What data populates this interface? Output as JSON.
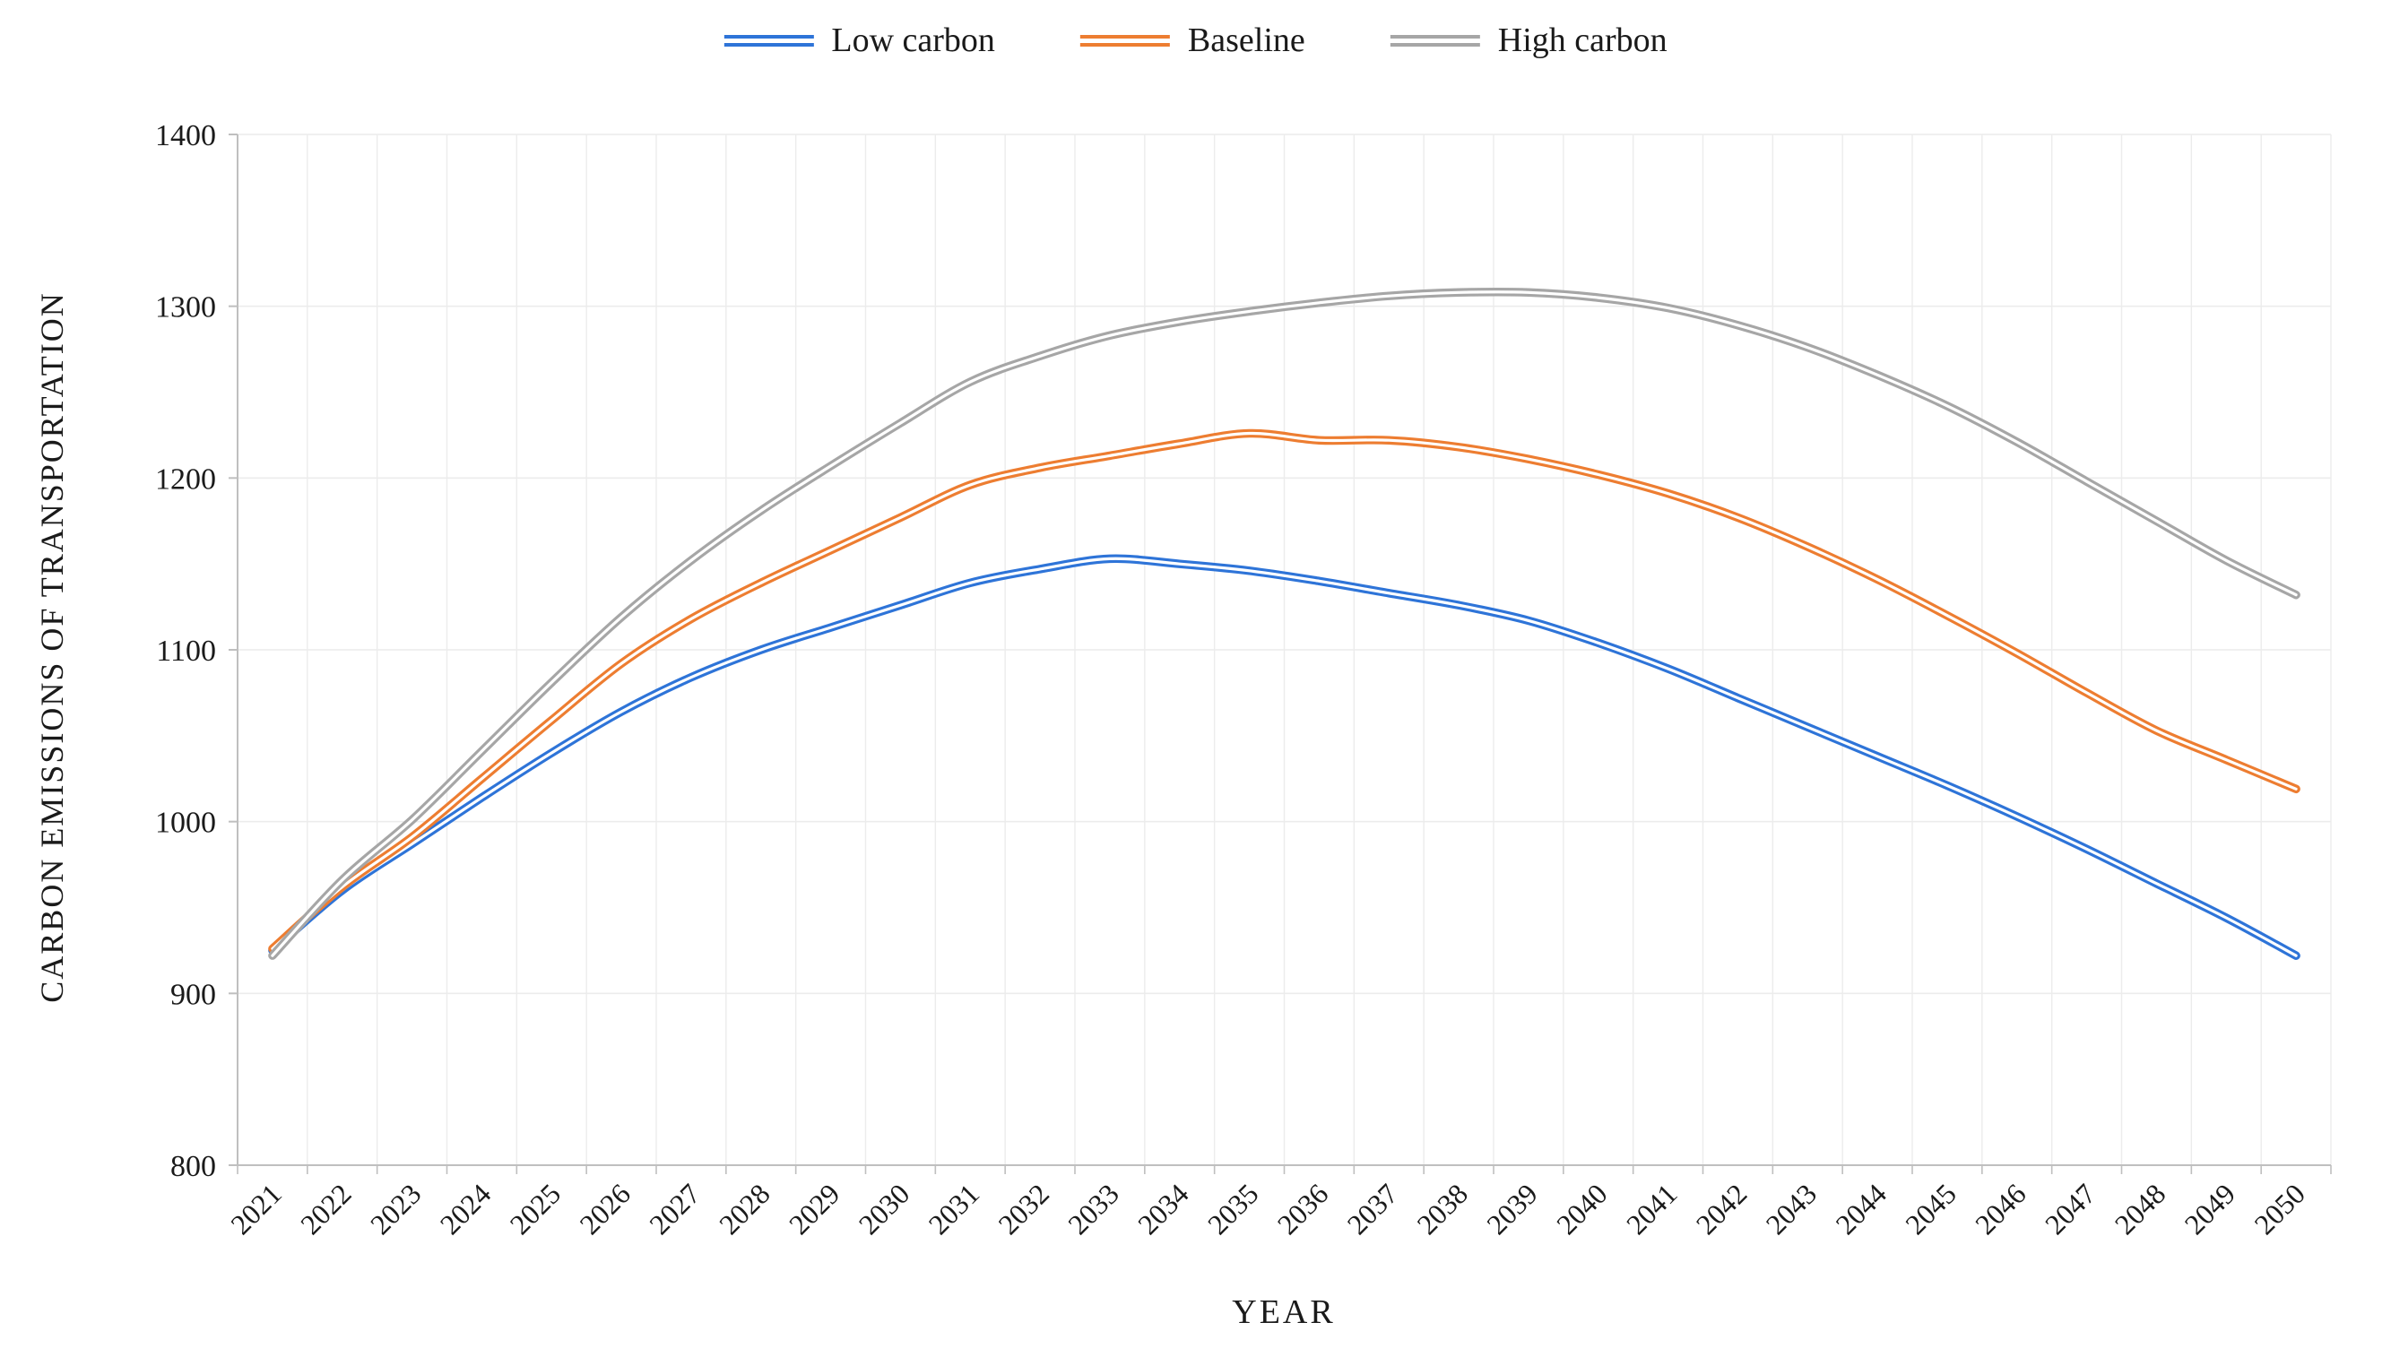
{
  "chart_data": {
    "type": "line",
    "title": "",
    "xlabel": "YEAR",
    "ylabel": "CARBON EMISSIONS OF TRANSPORTATION",
    "ylim": [
      800,
      1400
    ],
    "ytick_interval": 100,
    "grid": true,
    "legend_position": "top",
    "line_style": "double-stroke-smooth",
    "categories": [
      "2021",
      "2022",
      "2023",
      "2024",
      "2025",
      "2026",
      "2027",
      "2028",
      "2029",
      "2030",
      "2031",
      "2032",
      "2033",
      "2034",
      "2035",
      "2036",
      "2037",
      "2038",
      "2039",
      "2040",
      "2041",
      "2042",
      "2043",
      "2044",
      "2045",
      "2046",
      "2047",
      "2048",
      "2049",
      "2050"
    ],
    "series": [
      {
        "name": "Low carbon",
        "color": "#2E74D8",
        "values": [
          925,
          960,
          987,
          1014,
          1040,
          1064,
          1084,
          1100,
          1113,
          1126,
          1139,
          1147,
          1153,
          1150,
          1146,
          1140,
          1133,
          1126,
          1117,
          1104,
          1089,
          1072,
          1055,
          1038,
          1021,
          1003,
          984,
          964,
          944,
          922
        ]
      },
      {
        "name": "Baseline",
        "color": "#ED7D31",
        "values": [
          926,
          962,
          991,
          1025,
          1059,
          1092,
          1118,
          1139,
          1158,
          1177,
          1196,
          1206,
          1213,
          1220,
          1226,
          1222,
          1222,
          1218,
          1211,
          1202,
          1191,
          1177,
          1160,
          1141,
          1120,
          1098,
          1075,
          1053,
          1036,
          1019
        ]
      },
      {
        "name": "High carbon",
        "color": "#A6A6A6",
        "values": [
          922,
          966,
          1001,
          1041,
          1081,
          1119,
          1152,
          1181,
          1207,
          1232,
          1256,
          1271,
          1283,
          1291,
          1297,
          1302,
          1306,
          1308,
          1308,
          1305,
          1299,
          1289,
          1276,
          1260,
          1242,
          1221,
          1198,
          1175,
          1152,
          1132
        ]
      }
    ],
    "axis_color": "#BFBFBF",
    "gridline_color": "#ECECEC",
    "text_color": "#1a1a1a"
  }
}
